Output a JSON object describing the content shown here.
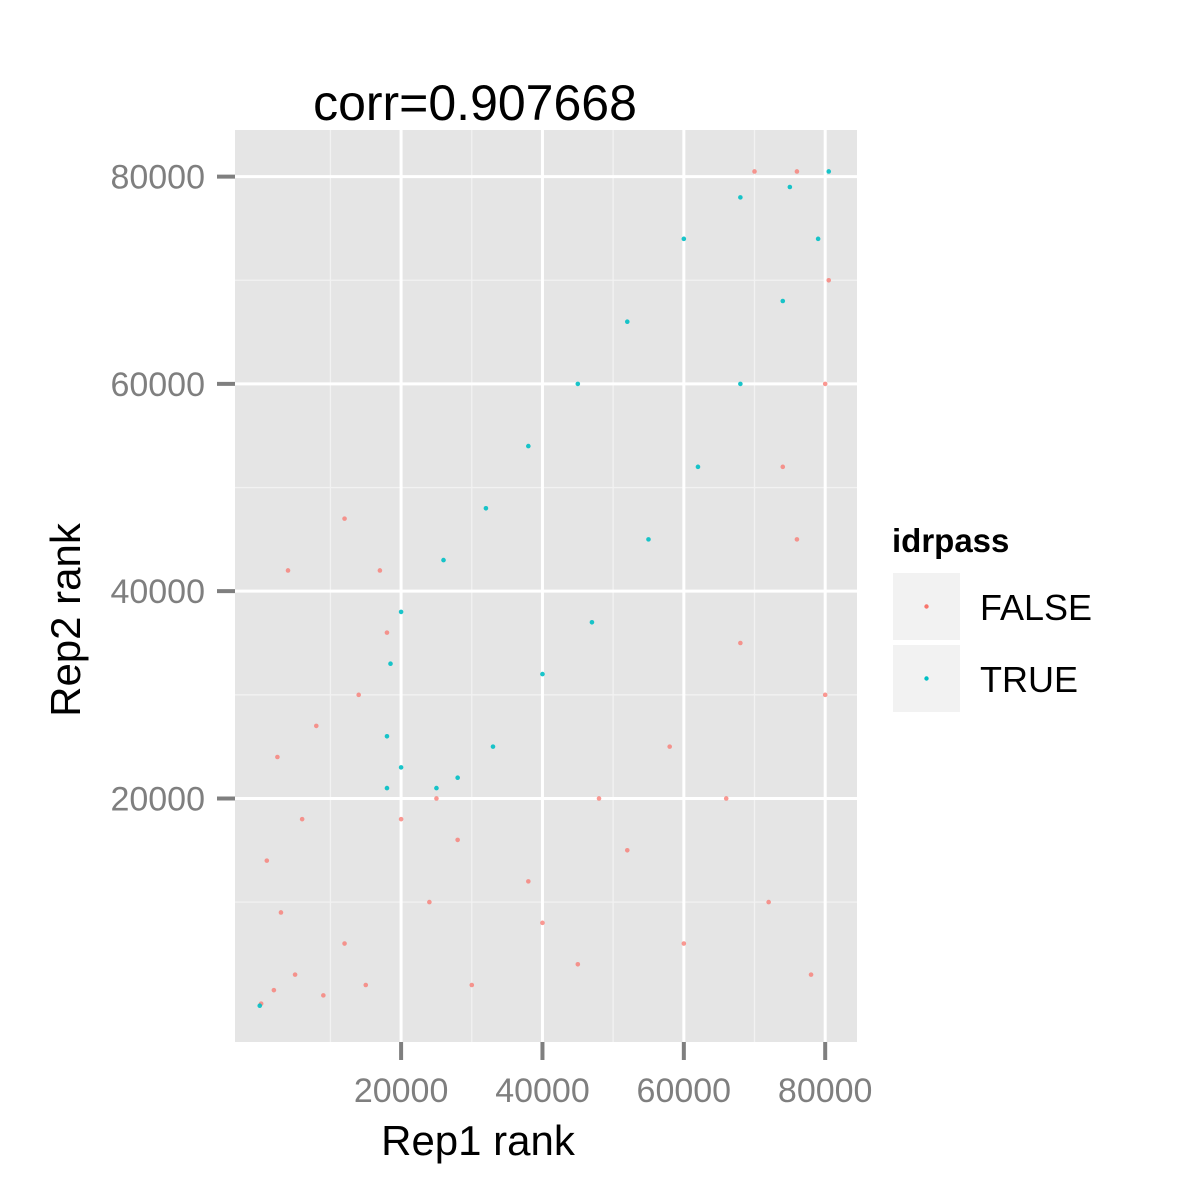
{
  "chart_data": {
    "type": "scatter",
    "title": "corr=0.907668",
    "xlabel": "Rep1 rank",
    "ylabel": "Rep2 rank",
    "xlim": [
      -3500,
      84500
    ],
    "ylim": [
      -3500,
      84500
    ],
    "x_ticks": [
      20000,
      40000,
      60000,
      80000
    ],
    "y_ticks": [
      20000,
      40000,
      60000,
      80000
    ],
    "x_tick_labels": [
      "20000",
      "40000",
      "60000",
      "80000"
    ],
    "y_tick_labels": [
      "20000",
      "40000",
      "60000",
      "80000"
    ],
    "grid": true,
    "background": "#e5e5e5",
    "legend": {
      "title": "idrpass",
      "placement": "right",
      "entries": [
        {
          "label": "FALSE",
          "color": "#f8766d"
        },
        {
          "label": "TRUE",
          "color": "#00bfc4"
        }
      ]
    },
    "series": [
      {
        "name": "FALSE",
        "color": "#f8766d",
        "points": [
          [
            200,
            200
          ],
          [
            2000,
            1500
          ],
          [
            5000,
            3000
          ],
          [
            9000,
            1000
          ],
          [
            12000,
            6000
          ],
          [
            15000,
            2000
          ],
          [
            3000,
            9000
          ],
          [
            1000,
            14000
          ],
          [
            6000,
            18000
          ],
          [
            2500,
            24000
          ],
          [
            8000,
            27000
          ],
          [
            14000,
            30000
          ],
          [
            18000,
            36000
          ],
          [
            17000,
            42000
          ],
          [
            12000,
            47000
          ],
          [
            4000,
            42000
          ],
          [
            24000,
            10000
          ],
          [
            30000,
            2000
          ],
          [
            38000,
            12000
          ],
          [
            45000,
            4000
          ],
          [
            52000,
            15000
          ],
          [
            60000,
            6000
          ],
          [
            66000,
            20000
          ],
          [
            72000,
            10000
          ],
          [
            78000,
            3000
          ],
          [
            80000,
            30000
          ],
          [
            76000,
            45000
          ],
          [
            74000,
            52000
          ],
          [
            80000,
            60000
          ],
          [
            80500,
            70000
          ],
          [
            68000,
            35000
          ],
          [
            58000,
            25000
          ],
          [
            48000,
            20000
          ],
          [
            40000,
            8000
          ],
          [
            25000,
            20000
          ],
          [
            28000,
            16000
          ],
          [
            20000,
            18000
          ],
          [
            70000,
            80500
          ],
          [
            76000,
            80500
          ]
        ]
      },
      {
        "name": "TRUE",
        "color": "#00bfc4",
        "points": [
          [
            0,
            0
          ],
          [
            18000,
            21000
          ],
          [
            20000,
            23000
          ],
          [
            25000,
            21000
          ],
          [
            28000,
            22000
          ],
          [
            33000,
            25000
          ],
          [
            40000,
            32000
          ],
          [
            47000,
            37000
          ],
          [
            55000,
            45000
          ],
          [
            62000,
            52000
          ],
          [
            68000,
            60000
          ],
          [
            74000,
            68000
          ],
          [
            79000,
            74000
          ],
          [
            80500,
            80500
          ],
          [
            75000,
            79000
          ],
          [
            68000,
            78000
          ],
          [
            60000,
            74000
          ],
          [
            52000,
            66000
          ],
          [
            45000,
            60000
          ],
          [
            38000,
            54000
          ],
          [
            32000,
            48000
          ],
          [
            26000,
            43000
          ],
          [
            20000,
            38000
          ],
          [
            18500,
            33000
          ],
          [
            18000,
            26000
          ]
        ]
      }
    ]
  }
}
